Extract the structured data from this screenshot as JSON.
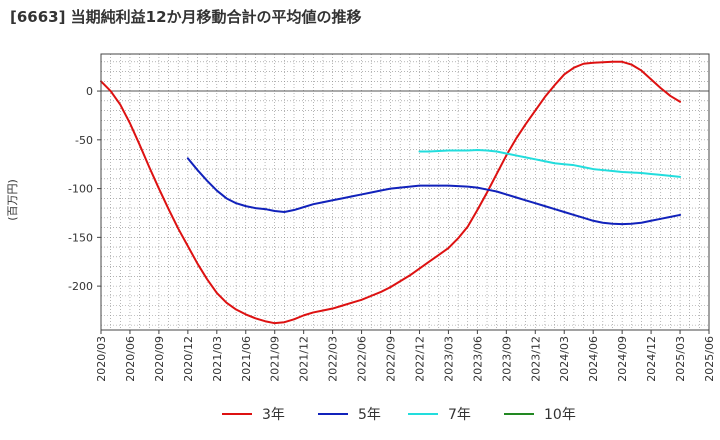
{
  "chart_data": {
    "type": "line",
    "title": "[6663]  当期純利益12か月移動合計の平均値の推移",
    "ylabel": "(百万円)",
    "xlabel": "",
    "ylim": [
      -245,
      38
    ],
    "yticks": [
      0,
      -50,
      -100,
      -150,
      -200
    ],
    "x_range": [
      "2020/03",
      "2025/06"
    ],
    "xticks": [
      "2020/03",
      "2020/06",
      "2020/09",
      "2020/12",
      "2021/03",
      "2021/06",
      "2021/09",
      "2021/12",
      "2022/03",
      "2022/06",
      "2022/09",
      "2022/12",
      "2023/03",
      "2023/06",
      "2023/09",
      "2023/12",
      "2024/03",
      "2024/06",
      "2024/09",
      "2024/12",
      "2025/03",
      "2025/06"
    ],
    "grid": true,
    "legend_position": "bottom",
    "series": [
      {
        "name": "3年",
        "color": "#dd1111",
        "points": [
          [
            "2020/03",
            10
          ],
          [
            "2020/04",
            0
          ],
          [
            "2020/05",
            -14
          ],
          [
            "2020/06",
            -33
          ],
          [
            "2020/07",
            -55
          ],
          [
            "2020/08",
            -78
          ],
          [
            "2020/09",
            -100
          ],
          [
            "2020/10",
            -121
          ],
          [
            "2020/11",
            -141
          ],
          [
            "2020/12",
            -159
          ],
          [
            "2021/01",
            -177
          ],
          [
            "2021/02",
            -193
          ],
          [
            "2021/03",
            -207
          ],
          [
            "2021/04",
            -217
          ],
          [
            "2021/05",
            -224
          ],
          [
            "2021/06",
            -229
          ],
          [
            "2021/07",
            -233
          ],
          [
            "2021/08",
            -236
          ],
          [
            "2021/09",
            -238
          ],
          [
            "2021/10",
            -237
          ],
          [
            "2021/11",
            -234
          ],
          [
            "2021/12",
            -230
          ],
          [
            "2022/01",
            -227
          ],
          [
            "2022/02",
            -225
          ],
          [
            "2022/03",
            -223
          ],
          [
            "2022/04",
            -220
          ],
          [
            "2022/05",
            -217
          ],
          [
            "2022/06",
            -214
          ],
          [
            "2022/07",
            -210
          ],
          [
            "2022/08",
            -206
          ],
          [
            "2022/09",
            -201
          ],
          [
            "2022/10",
            -195
          ],
          [
            "2022/11",
            -189
          ],
          [
            "2022/12",
            -182
          ],
          [
            "2023/01",
            -175
          ],
          [
            "2023/02",
            -168
          ],
          [
            "2023/03",
            -161
          ],
          [
            "2023/04",
            -151
          ],
          [
            "2023/05",
            -139
          ],
          [
            "2023/06",
            -122
          ],
          [
            "2023/07",
            -104
          ],
          [
            "2023/08",
            -85
          ],
          [
            "2023/09",
            -66
          ],
          [
            "2023/10",
            -49
          ],
          [
            "2023/11",
            -34
          ],
          [
            "2023/12",
            -20
          ],
          [
            "2024/01",
            -6
          ],
          [
            "2024/02",
            6
          ],
          [
            "2024/03",
            17
          ],
          [
            "2024/04",
            24
          ],
          [
            "2024/05",
            28
          ],
          [
            "2024/06",
            29
          ],
          [
            "2024/07",
            29.5
          ],
          [
            "2024/08",
            30
          ],
          [
            "2024/09",
            30
          ],
          [
            "2024/10",
            27
          ],
          [
            "2024/11",
            21
          ],
          [
            "2024/12",
            12
          ],
          [
            "2025/01",
            3
          ],
          [
            "2025/02",
            -5
          ],
          [
            "2025/03",
            -11
          ]
        ]
      },
      {
        "name": "5年",
        "color": "#1122bb",
        "points": [
          [
            "2020/12",
            -69
          ],
          [
            "2021/01",
            -81
          ],
          [
            "2021/02",
            -92
          ],
          [
            "2021/03",
            -102
          ],
          [
            "2021/04",
            -110
          ],
          [
            "2021/05",
            -115
          ],
          [
            "2021/06",
            -118
          ],
          [
            "2021/07",
            -120
          ],
          [
            "2021/08",
            -121
          ],
          [
            "2021/09",
            -123
          ],
          [
            "2021/10",
            -124
          ],
          [
            "2021/11",
            -122
          ],
          [
            "2021/12",
            -119
          ],
          [
            "2022/01",
            -116
          ],
          [
            "2022/02",
            -114
          ],
          [
            "2022/03",
            -112
          ],
          [
            "2022/04",
            -110
          ],
          [
            "2022/05",
            -108
          ],
          [
            "2022/06",
            -106
          ],
          [
            "2022/07",
            -104
          ],
          [
            "2022/08",
            -102
          ],
          [
            "2022/09",
            -100
          ],
          [
            "2022/10",
            -99
          ],
          [
            "2022/11",
            -98
          ],
          [
            "2022/12",
            -97
          ],
          [
            "2023/01",
            -97
          ],
          [
            "2023/02",
            -97
          ],
          [
            "2023/03",
            -97
          ],
          [
            "2023/04",
            -97.5
          ],
          [
            "2023/05",
            -98
          ],
          [
            "2023/06",
            -99
          ],
          [
            "2023/07",
            -101
          ],
          [
            "2023/08",
            -103
          ],
          [
            "2023/09",
            -106
          ],
          [
            "2023/10",
            -109
          ],
          [
            "2023/11",
            -112
          ],
          [
            "2023/12",
            -115
          ],
          [
            "2024/01",
            -118
          ],
          [
            "2024/02",
            -121
          ],
          [
            "2024/03",
            -124
          ],
          [
            "2024/04",
            -127
          ],
          [
            "2024/05",
            -130
          ],
          [
            "2024/06",
            -133
          ],
          [
            "2024/07",
            -135
          ],
          [
            "2024/08",
            -136
          ],
          [
            "2024/09",
            -136.5
          ],
          [
            "2024/10",
            -136
          ],
          [
            "2024/11",
            -135
          ],
          [
            "2024/12",
            -133
          ],
          [
            "2025/01",
            -131
          ],
          [
            "2025/02",
            -129
          ],
          [
            "2025/03",
            -127
          ]
        ]
      },
      {
        "name": "7年",
        "color": "#22dddd",
        "points": [
          [
            "2022/12",
            -62
          ],
          [
            "2023/01",
            -62
          ],
          [
            "2023/02",
            -61.5
          ],
          [
            "2023/03",
            -61
          ],
          [
            "2023/04",
            -61
          ],
          [
            "2023/05",
            -61
          ],
          [
            "2023/06",
            -60.5
          ],
          [
            "2023/07",
            -61
          ],
          [
            "2023/08",
            -62
          ],
          [
            "2023/09",
            -64
          ],
          [
            "2023/10",
            -66
          ],
          [
            "2023/11",
            -68
          ],
          [
            "2023/12",
            -70
          ],
          [
            "2024/01",
            -72
          ],
          [
            "2024/02",
            -74
          ],
          [
            "2024/03",
            -75
          ],
          [
            "2024/04",
            -76
          ],
          [
            "2024/05",
            -78
          ],
          [
            "2024/06",
            -80
          ],
          [
            "2024/07",
            -81
          ],
          [
            "2024/08",
            -82
          ],
          [
            "2024/09",
            -83
          ],
          [
            "2024/10",
            -83.5
          ],
          [
            "2024/11",
            -84
          ],
          [
            "2024/12",
            -85
          ],
          [
            "2025/01",
            -86
          ],
          [
            "2025/02",
            -87
          ],
          [
            "2025/03",
            -88
          ]
        ]
      },
      {
        "name": "10年",
        "color": "#228822",
        "points": []
      }
    ]
  }
}
